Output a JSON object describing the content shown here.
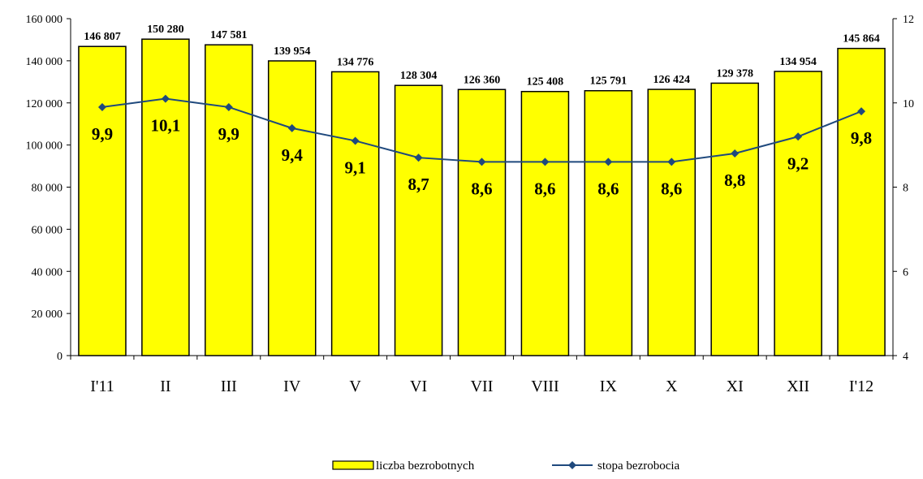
{
  "chart_data": {
    "type": "bar",
    "title": "",
    "categories": [
      "I'11",
      "II",
      "III",
      "IV",
      "V",
      "VI",
      "VII",
      "VIII",
      "IX",
      "X",
      "XI",
      "XII",
      "I'12"
    ],
    "series": [
      {
        "name": "liczba bezrobotnych",
        "type": "bar",
        "axis": "left",
        "color": "#ffff00",
        "values": [
          146807,
          150280,
          147581,
          139954,
          134776,
          128304,
          126360,
          125408,
          125791,
          126424,
          129378,
          134954,
          145864
        ],
        "labels": [
          "146 807",
          "150 280",
          "147 581",
          "139 954",
          "134 776",
          "128 304",
          "126 360",
          "125 408",
          "125 791",
          "126 424",
          "129 378",
          "134 954",
          "145 864"
        ]
      },
      {
        "name": "stopa bezrobocia",
        "type": "line",
        "axis": "right",
        "color": "#1f497d",
        "values": [
          9.9,
          10.1,
          9.9,
          9.4,
          9.1,
          8.7,
          8.6,
          8.6,
          8.6,
          8.6,
          8.8,
          9.2,
          9.8
        ],
        "labels": [
          "9,9",
          "10,1",
          "9,9",
          "9,4",
          "9,1",
          "8,7",
          "8,6",
          "8,6",
          "8,6",
          "8,6",
          "8,8",
          "9,2",
          "9,8"
        ]
      }
    ],
    "y_left": {
      "min": 0,
      "max": 160000,
      "step": 20000,
      "ticks": [
        "0",
        "20 000",
        "40 000",
        "60 000",
        "80 000",
        "100 000",
        "120 000",
        "140 000",
        "160 000"
      ]
    },
    "y_right": {
      "min": 4,
      "max": 12,
      "step": 2,
      "ticks": [
        "4",
        "6",
        "8",
        "10",
        "12"
      ]
    },
    "grid": false,
    "legend": {
      "position": "bottom",
      "items": [
        "liczba bezrobotnych",
        "stopa bezrobocia"
      ]
    }
  }
}
